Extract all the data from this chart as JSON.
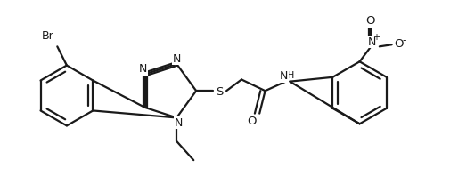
{
  "background_color": "#ffffff",
  "line_color": "#1a1a1a",
  "line_width": 1.6,
  "figsize": [
    5.05,
    1.98
  ],
  "dpi": 100,
  "xlim": [
    0.0,
    5.05
  ],
  "ylim": [
    0.0,
    1.98
  ]
}
